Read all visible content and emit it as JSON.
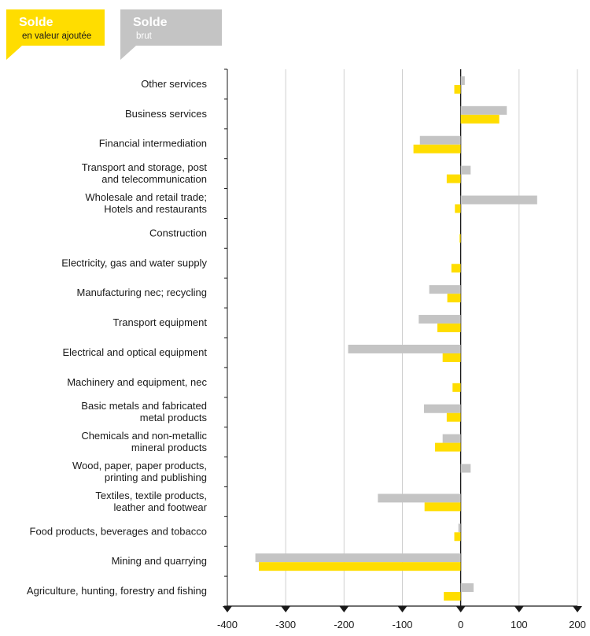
{
  "legend": {
    "value_added": {
      "title": "Solde",
      "subtitle": "en valeur ajoutée",
      "color": "#ffdd00"
    },
    "gross": {
      "title": "Solde",
      "subtitle": "brut",
      "color": "#c4c4c4"
    }
  },
  "chart_data": {
    "type": "bar",
    "orientation": "horizontal",
    "categories": [
      [
        "Other services"
      ],
      [
        "Business services"
      ],
      [
        "Financial intermediation"
      ],
      [
        "Transport and storage, post",
        "and telecommunication"
      ],
      [
        "Wholesale and retail trade;",
        "Hotels and restaurants"
      ],
      [
        "Construction"
      ],
      [
        "Electricity, gas and water supply"
      ],
      [
        "Manufacturing nec; recycling"
      ],
      [
        "Transport equipment"
      ],
      [
        "Electrical and optical equipment"
      ],
      [
        "Machinery and equipment, nec"
      ],
      [
        "Basic metals and fabricated",
        "metal products"
      ],
      [
        "Chemicals and non-metallic",
        "mineral products"
      ],
      [
        "Wood, paper, paper products,",
        "printing and publishing"
      ],
      [
        "Textiles, textile products,",
        "leather and footwear"
      ],
      [
        "Food products, beverages and tobacco"
      ],
      [
        "Mining and quarrying"
      ],
      [
        "Agriculture, hunting, forestry and fishing"
      ]
    ],
    "series": [
      {
        "key": "gross",
        "values": [
          7,
          79,
          -70,
          17,
          131,
          0,
          0,
          -54,
          -72,
          -193,
          0,
          -63,
          -31,
          17,
          -142,
          -4,
          -352,
          22
        ]
      },
      {
        "key": "value_added",
        "values": [
          -11,
          66,
          -81,
          -24,
          -10,
          -2,
          -16,
          -23,
          -40,
          -31,
          -14,
          -24,
          -44,
          0,
          -62,
          -11,
          -346,
          -29
        ]
      }
    ],
    "xlim": [
      -400,
      200
    ],
    "xticks": [
      -400,
      -300,
      -200,
      -100,
      0,
      100,
      200
    ],
    "grid": true
  }
}
